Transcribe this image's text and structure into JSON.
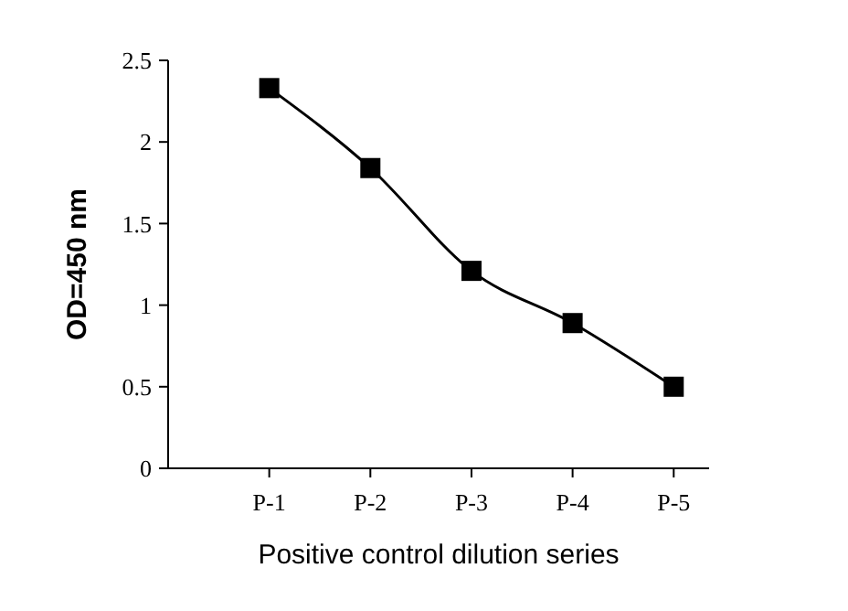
{
  "chart_data": {
    "type": "line",
    "xlabel": "Positive control dilution series",
    "ylabel": "OD=450 nm",
    "categories": [
      "P-1",
      "P-2",
      "P-3",
      "P-4",
      "P-5"
    ],
    "series": [
      {
        "color": "#000000",
        "values": [
          2.33,
          1.84,
          1.21,
          0.89,
          0.5
        ]
      }
    ],
    "ylim": [
      0,
      2.5
    ],
    "yticks": [
      0,
      0.5,
      1,
      1.5,
      2,
      2.5
    ],
    "marker": "square",
    "line_style": "solid",
    "grid": false
  }
}
